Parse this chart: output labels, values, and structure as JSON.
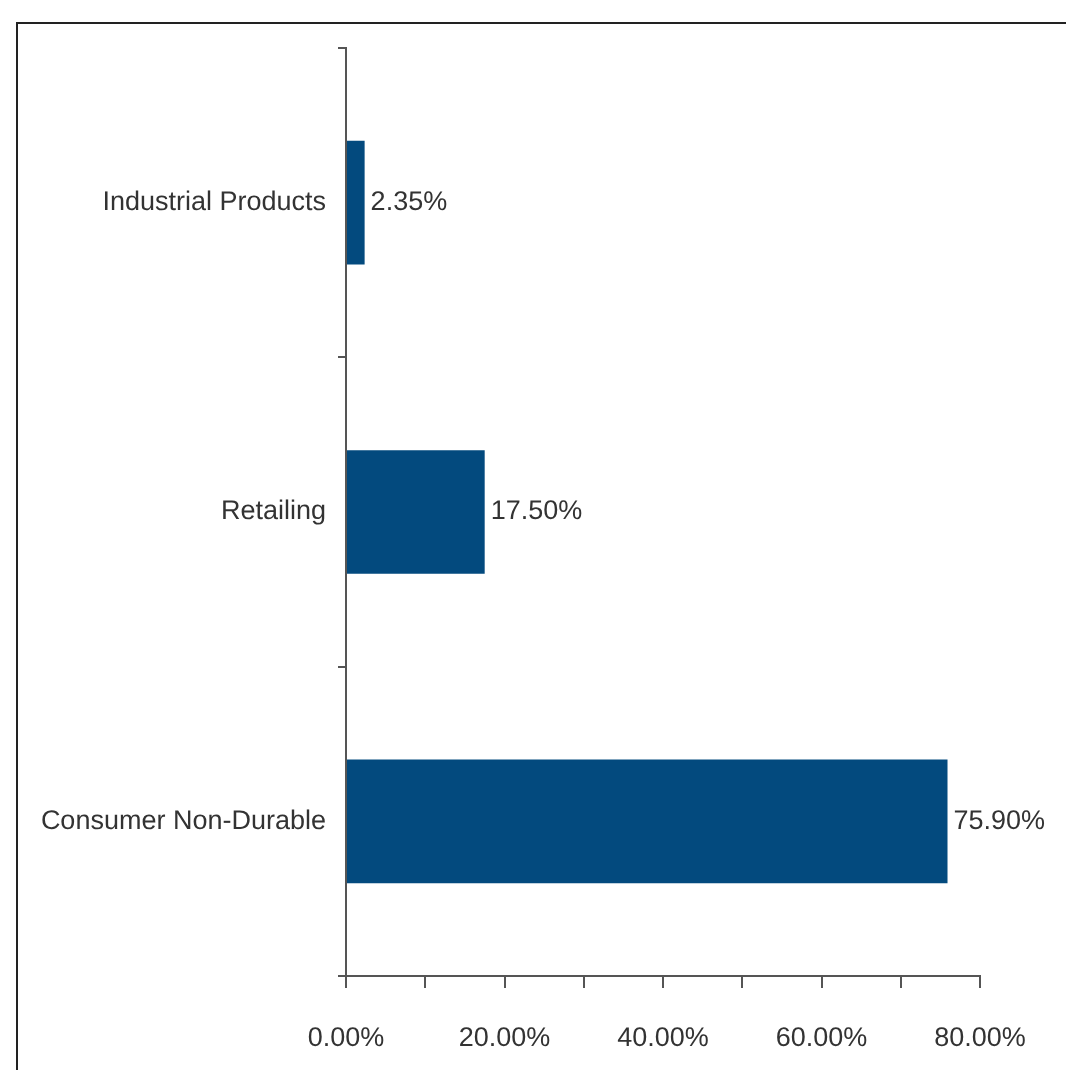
{
  "chart_data": {
    "type": "bar",
    "orientation": "horizontal",
    "categories": [
      "Industrial Products",
      "Retailing",
      "Consumer Non-Durable"
    ],
    "values": [
      2.35,
      17.5,
      75.9
    ],
    "color": "#034a7e",
    "value_labels": [
      "2.35%",
      "17.50%",
      "75.90%"
    ],
    "xlim": [
      0,
      80
    ],
    "xticks": [
      {
        "value": 0,
        "label": "0.00%"
      },
      {
        "value": 10,
        "label": null
      },
      {
        "value": 20,
        "label": "20.00%"
      },
      {
        "value": 30,
        "label": null
      },
      {
        "value": 40,
        "label": "40.00%"
      },
      {
        "value": 50,
        "label": null
      },
      {
        "value": 60,
        "label": "60.00%"
      },
      {
        "value": 70,
        "label": null
      },
      {
        "value": 80,
        "label": "80.00%"
      }
    ],
    "grid": false,
    "legend": false
  }
}
